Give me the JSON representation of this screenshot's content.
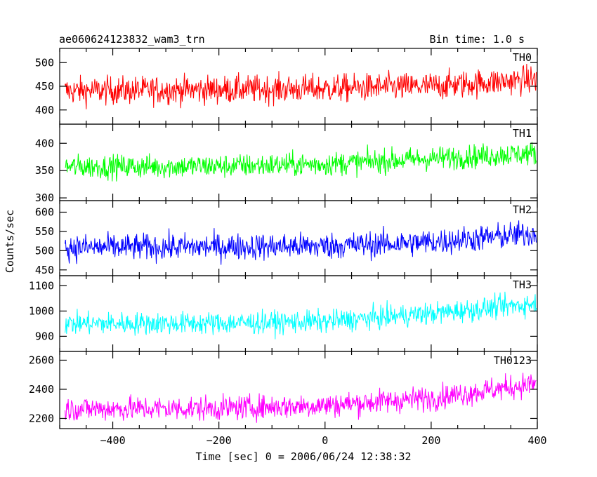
{
  "header": {
    "title": "ae060624123832_wam3_trn",
    "bin_time": "Bin time: 1.0 s"
  },
  "chart_data": {
    "type": "line",
    "title": "ae060624123832_wam3_trn",
    "subtitle": "Bin time: 1.0 s",
    "xlabel": "Time [sec] 0 = 2006/06/24 12:38:32",
    "ylabel": "Counts/sec",
    "xlim": [
      -500,
      400
    ],
    "x_ticks": [
      -400,
      -200,
      0,
      200,
      400
    ],
    "panels": [
      {
        "name": "TH0",
        "color": "#ff0000",
        "ylim": [
          370,
          530
        ],
        "y_ticks": [
          400,
          450,
          500
        ],
        "trend": [
          [
            -500,
            440
          ],
          [
            -300,
            442
          ],
          [
            0,
            445
          ],
          [
            200,
            450
          ],
          [
            400,
            465
          ]
        ],
        "noise_amplitude": 30
      },
      {
        "name": "TH1",
        "color": "#00ff00",
        "ylim": [
          295,
          435
        ],
        "y_ticks": [
          300,
          350,
          400
        ],
        "trend": [
          [
            -500,
            357
          ],
          [
            -200,
            358
          ],
          [
            0,
            362
          ],
          [
            200,
            372
          ],
          [
            400,
            382
          ]
        ],
        "noise_amplitude": 22
      },
      {
        "name": "TH2",
        "color": "#0000ff",
        "ylim": [
          435,
          630
        ],
        "y_ticks": [
          450,
          500,
          550,
          600
        ],
        "trend": [
          [
            -500,
            508
          ],
          [
            -200,
            510
          ],
          [
            0,
            512
          ],
          [
            200,
            522
          ],
          [
            400,
            545
          ]
        ],
        "noise_amplitude": 35
      },
      {
        "name": "TH3",
        "color": "#00ffff",
        "ylim": [
          840,
          1140
        ],
        "y_ticks": [
          900,
          1000,
          1100
        ],
        "trend": [
          [
            -500,
            950
          ],
          [
            -200,
            952
          ],
          [
            0,
            958
          ],
          [
            200,
            990
          ],
          [
            400,
            1030
          ]
        ],
        "noise_amplitude": 45
      },
      {
        "name": "TH0123",
        "color": "#ff00ff",
        "ylim": [
          2130,
          2660
        ],
        "y_ticks": [
          2200,
          2400,
          2600
        ],
        "trend": [
          [
            -500,
            2265
          ],
          [
            -200,
            2270
          ],
          [
            0,
            2290
          ],
          [
            200,
            2340
          ],
          [
            400,
            2440
          ]
        ],
        "noise_amplitude": 85
      }
    ]
  }
}
